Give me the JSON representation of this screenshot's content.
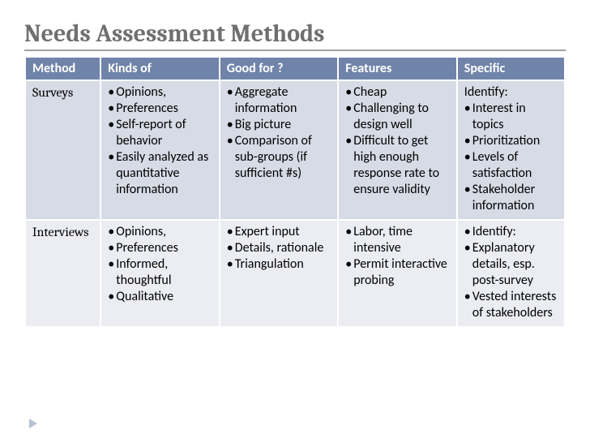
{
  "title": "Needs Assessment Methods",
  "columns": [
    "Method",
    "Kinds of",
    "Good for ?",
    "Features",
    "Specific"
  ],
  "column_widths": [
    "14%",
    "22%",
    "22%",
    "22%",
    "20%"
  ],
  "rows": [
    {
      "method": "Surveys",
      "kinds": [
        "Opinions,",
        "Preferences",
        "Self-report of behavior",
        "Easily analyzed as quantitative information"
      ],
      "good": [
        "Aggregate information",
        "Big picture",
        "Comparison of sub-groups (if sufficient #s)"
      ],
      "features": [
        "Cheap",
        "Challenging to design well",
        "Difficult to get high enough response rate to ensure validity"
      ],
      "specific_lead": "Identify:",
      "specific": [
        "Interest in topics",
        "Prioritization",
        "Levels of satisfaction",
        "Stakeholder information"
      ]
    },
    {
      "method": "Interviews",
      "kinds": [
        "Opinions,",
        "Preferences",
        "Informed, thoughtful",
        "Qualitative"
      ],
      "good": [
        "Expert input",
        "Details, rationale",
        "Triangulation"
      ],
      "features": [
        "Labor, time intensive",
        "Permit interactive probing"
      ],
      "specific_lead": "",
      "specific": [
        "Identify:",
        "Explanatory details, esp. post-survey",
        "Vested interests of stakeholders"
      ]
    }
  ],
  "colors": {
    "header_bg": "#7084aa",
    "header_text": "#ffffff",
    "row_bg": "#d6dbe5",
    "row_alt_bg": "#ecedf2",
    "title_color": "#6f6f6f",
    "marker_color": "#b8c1d6"
  }
}
